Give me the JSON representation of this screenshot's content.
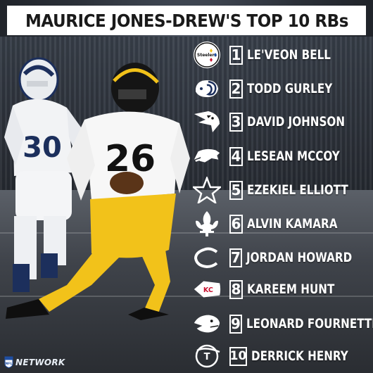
{
  "title": "MAURICE JONES-DREW'S TOP 10 RBs",
  "rankings": [
    {
      "rank": "1",
      "name": "LE'VEON BELL",
      "logo": "steelers-logo"
    },
    {
      "rank": "2",
      "name": "TODD GURLEY",
      "logo": "rams-logo"
    },
    {
      "rank": "3",
      "name": "DAVID JOHNSON",
      "logo": "cardinals-logo"
    },
    {
      "rank": "4",
      "name": "LESEAN MCCOY",
      "logo": "bills-logo"
    },
    {
      "rank": "5",
      "name": "EZEKIEL ELLIOTT",
      "logo": "cowboys-logo"
    },
    {
      "rank": "6",
      "name": "ALVIN KAMARA",
      "logo": "saints-logo"
    },
    {
      "rank": "7",
      "name": "JORDAN HOWARD",
      "logo": "bears-logo"
    },
    {
      "rank": "8",
      "name": "KAREEM HUNT",
      "logo": "chiefs-logo"
    },
    {
      "rank": "9",
      "name": "LEONARD FOURNETTE",
      "logo": "jaguars-logo"
    },
    {
      "rank": "10",
      "name": "DERRICK HENRY",
      "logo": "titans-logo"
    }
  ],
  "photo": {
    "steelers_jersey_number": "26",
    "rams_jersey_number": "30"
  },
  "footer": {
    "network_text": "NETWORK",
    "shield_text": "NFL"
  },
  "colors": {
    "steelers_gold": "#f2c21a",
    "steelers_black": "#111111",
    "rams_blue": "#1c2f5c",
    "title_bg": "#ffffff",
    "text_white": "#ffffff"
  }
}
